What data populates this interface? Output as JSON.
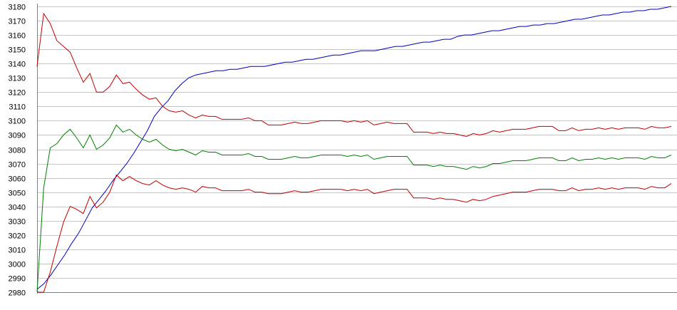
{
  "chart_data": {
    "type": "line",
    "title": "",
    "xlabel": "",
    "ylabel": "",
    "ylim": [
      2980,
      3180
    ],
    "y_ticks": [
      2980,
      2990,
      3000,
      3010,
      3020,
      3030,
      3040,
      3050,
      3060,
      3070,
      3080,
      3090,
      3100,
      3110,
      3120,
      3130,
      3140,
      3150,
      3160,
      3170,
      3180
    ],
    "x_tick_labels": [],
    "grid": true,
    "legend": "none",
    "series": [
      {
        "color": "#0000c0",
        "values": [
          2982,
          2986,
          2992,
          2999,
          3006,
          3014,
          3021,
          3030,
          3039,
          3045,
          3051,
          3058,
          3064,
          3070,
          3077,
          3085,
          3093,
          3103,
          3109,
          3114,
          3121,
          3126,
          3130,
          3132,
          3133,
          3134,
          3135,
          3135,
          3136,
          3136,
          3137,
          3138,
          3138,
          3138,
          3139,
          3140,
          3141,
          3141,
          3142,
          3143,
          3143,
          3144,
          3145,
          3146,
          3146,
          3147,
          3148,
          3149,
          3149,
          3149,
          3150,
          3151,
          3152,
          3152,
          3153,
          3154,
          3155,
          3155,
          3156,
          3157,
          3157,
          3159,
          3160,
          3160,
          3161,
          3162,
          3163,
          3163,
          3164,
          3165,
          3166,
          3166,
          3167,
          3167,
          3168,
          3168,
          3169,
          3170,
          3171,
          3171,
          3172,
          3173,
          3174,
          3174,
          3175,
          3176,
          3176,
          3177,
          3177,
          3178,
          3178,
          3179,
          3180
        ]
      },
      {
        "color": "#c00000",
        "values": [
          3138,
          3175,
          3168,
          3156,
          3152,
          3148,
          3137,
          3127,
          3133,
          3120,
          3120,
          3124,
          3132,
          3126,
          3127,
          3122,
          3118,
          3115,
          3116,
          3110,
          3107,
          3106,
          3107,
          3104,
          3102,
          3104,
          3103,
          3103,
          3101,
          3101,
          3101,
          3101,
          3102,
          3100,
          3100,
          3097,
          3097,
          3097,
          3098,
          3099,
          3098,
          3098,
          3099,
          3100,
          3100,
          3100,
          3100,
          3099,
          3100,
          3099,
          3100,
          3097,
          3098,
          3099,
          3098,
          3098,
          3098,
          3092,
          3092,
          3092,
          3091,
          3092,
          3091,
          3091,
          3090,
          3089,
          3091,
          3090,
          3091,
          3093,
          3092,
          3093,
          3094,
          3094,
          3094,
          3095,
          3096,
          3096,
          3096,
          3093,
          3093,
          3095,
          3093,
          3094,
          3094,
          3095,
          3094,
          3095,
          3094,
          3095,
          3095,
          3095,
          3094,
          3096,
          3095,
          3095,
          3096
        ]
      },
      {
        "color": "#008000",
        "values": [
          2980,
          3053,
          3081,
          3084,
          3090,
          3094,
          3088,
          3081,
          3090,
          3080,
          3083,
          3088,
          3097,
          3092,
          3094,
          3090,
          3087,
          3085,
          3087,
          3083,
          3080,
          3079,
          3080,
          3078,
          3076,
          3079,
          3078,
          3078,
          3076,
          3076,
          3076,
          3076,
          3077,
          3075,
          3075,
          3073,
          3073,
          3073,
          3074,
          3075,
          3074,
          3074,
          3075,
          3076,
          3076,
          3076,
          3076,
          3075,
          3076,
          3075,
          3076,
          3073,
          3074,
          3075,
          3075,
          3075,
          3075,
          3069,
          3069,
          3069,
          3068,
          3069,
          3068,
          3068,
          3067,
          3066,
          3068,
          3067,
          3068,
          3070,
          3070,
          3071,
          3072,
          3072,
          3072,
          3073,
          3074,
          3074,
          3074,
          3072,
          3072,
          3074,
          3072,
          3073,
          3073,
          3074,
          3073,
          3074,
          3073,
          3074,
          3074,
          3074,
          3073,
          3075,
          3074,
          3074,
          3076
        ]
      },
      {
        "color": "#c00000",
        "values": [
          2980,
          2980,
          2994,
          3012,
          3029,
          3040,
          3038,
          3035,
          3047,
          3039,
          3043,
          3050,
          3062,
          3058,
          3061,
          3058,
          3056,
          3055,
          3058,
          3055,
          3053,
          3052,
          3053,
          3052,
          3050,
          3054,
          3053,
          3053,
          3051,
          3051,
          3051,
          3051,
          3052,
          3050,
          3050,
          3049,
          3049,
          3049,
          3050,
          3051,
          3050,
          3050,
          3051,
          3052,
          3052,
          3052,
          3052,
          3051,
          3052,
          3051,
          3052,
          3049,
          3050,
          3051,
          3052,
          3052,
          3052,
          3046,
          3046,
          3046,
          3045,
          3046,
          3045,
          3045,
          3044,
          3043,
          3045,
          3044,
          3045,
          3047,
          3048,
          3049,
          3050,
          3050,
          3050,
          3051,
          3052,
          3052,
          3052,
          3051,
          3051,
          3053,
          3051,
          3052,
          3052,
          3053,
          3052,
          3053,
          3052,
          3053,
          3053,
          3053,
          3052,
          3054,
          3053,
          3053,
          3056
        ]
      }
    ]
  }
}
